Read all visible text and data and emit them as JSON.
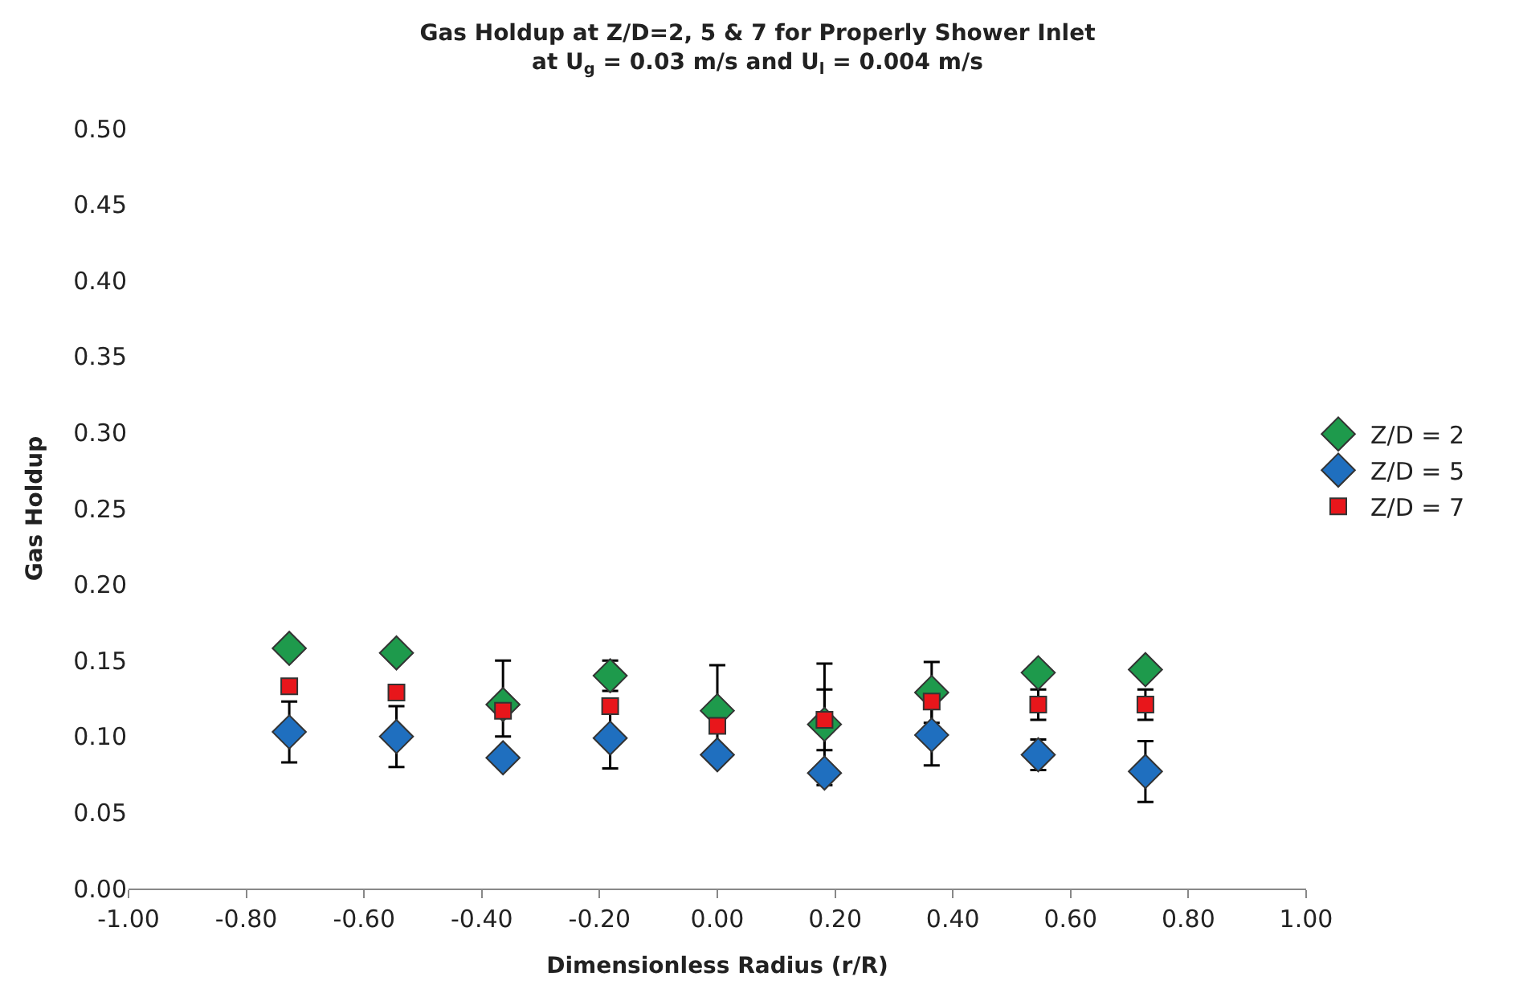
{
  "chart_data": {
    "type": "scatter",
    "title": "Gas Holdup at Z/D=2, 5 & 7 for Properly Shower Inlet",
    "subtitle": "at U$_{g}$ = 0.03 m/s and U$_{l}$ = 0.004 m/s",
    "xlabel": "Dimensionless Radius (r/R)",
    "ylabel": "Gas Holdup",
    "x": [
      -0.727,
      -0.545,
      -0.364,
      -0.182,
      0,
      0.182,
      0.364,
      0.545,
      0.727
    ],
    "series": [
      {
        "name": "Z/D = 2",
        "color": "#1e9a4c",
        "marker": "diamond",
        "values": [
          0.158,
          0.155,
          0.121,
          0.14,
          0.117,
          0.108,
          0.129,
          0.142,
          0.144
        ],
        "errors": [
          null,
          null,
          [
            0.1,
            0.15
          ],
          0.01,
          0.03,
          0.04,
          0.02,
          null,
          null
        ]
      },
      {
        "name": "Z/D = 5",
        "color": "#1f6fbf",
        "marker": "diamond",
        "values": [
          0.103,
          0.1,
          0.086,
          0.099,
          0.088,
          0.076,
          0.101,
          0.088,
          0.077
        ],
        "errors": [
          0.02,
          0.02,
          null,
          0.02,
          null,
          null,
          0.02,
          0.01,
          0.02
        ]
      },
      {
        "name": "Z/D = 7",
        "color": "#e8161b",
        "marker": "square",
        "values": [
          0.133,
          0.129,
          0.117,
          0.12,
          0.107,
          0.111,
          0.123,
          0.121,
          0.121
        ],
        "errors": [
          null,
          null,
          null,
          null,
          null,
          0.02,
          null,
          0.01,
          0.01
        ]
      }
    ],
    "xlim": [
      -1,
      1
    ],
    "xticks": [
      {
        "value": -1,
        "label": "-1.00"
      },
      {
        "value": -0.8,
        "label": "-0.80"
      },
      {
        "value": -0.6,
        "label": "-0.60"
      },
      {
        "value": -0.4,
        "label": "-0.40"
      },
      {
        "value": -0.2,
        "label": "-0.20"
      },
      {
        "value": 0,
        "label": "0.00"
      },
      {
        "value": 0.2,
        "label": "0.20"
      },
      {
        "value": 0.4,
        "label": "0.40"
      },
      {
        "value": 0.6,
        "label": "0.60"
      },
      {
        "value": 0.8,
        "label": "0.80"
      },
      {
        "value": 1,
        "label": "1.00"
      }
    ],
    "ylim": [
      0,
      0.5
    ],
    "yticks": [
      {
        "value": 0,
        "label": "0.00"
      },
      {
        "value": 0.05,
        "label": "0.05"
      },
      {
        "value": 0.1,
        "label": "0.10"
      },
      {
        "value": 0.15,
        "label": "0.15"
      },
      {
        "value": 0.2,
        "label": "0.20"
      },
      {
        "value": 0.25,
        "label": "0.25"
      },
      {
        "value": 0.3,
        "label": "0.30"
      },
      {
        "value": 0.35,
        "label": "0.35"
      },
      {
        "value": 0.4,
        "label": "0.40"
      },
      {
        "value": 0.45,
        "label": "0.45"
      },
      {
        "value": 0.5,
        "label": "0.50"
      }
    ],
    "legend": "right"
  }
}
